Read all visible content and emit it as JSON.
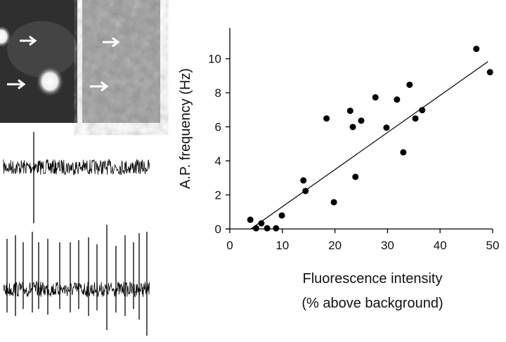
{
  "chart_data": {
    "type": "scatter",
    "xlabel": [
      "Fluorescence intensity",
      "(% above background)"
    ],
    "ylabel": "A.P. frequency (Hz)",
    "x": [
      3.9,
      5.0,
      6.0,
      7.1,
      8.8,
      9.9,
      14.0,
      14.4,
      18.4,
      19.8,
      22.9,
      23.4,
      23.9,
      25.0,
      27.7,
      29.8,
      31.8,
      33.0,
      34.2,
      35.3,
      36.6,
      46.9,
      49.5
    ],
    "values": [
      0.54,
      0.04,
      0.33,
      0.04,
      0.04,
      0.79,
      2.85,
      2.23,
      6.49,
      1.57,
      6.94,
      5.99,
      3.06,
      6.36,
      7.73,
      5.95,
      7.6,
      4.5,
      8.47,
      6.49,
      6.98,
      10.58,
      9.21
    ],
    "color": "#000000",
    "trendline": {
      "x": [
        4.0,
        49.1
      ],
      "y": [
        0,
        9.83
      ]
    },
    "xlim": [
      0,
      50
    ],
    "xticks": [
      0,
      10,
      20,
      30,
      40,
      50
    ],
    "ylim": [
      0,
      11.8
    ],
    "yticks": [
      0,
      2,
      4,
      6,
      8,
      10
    ],
    "grid": false
  }
}
